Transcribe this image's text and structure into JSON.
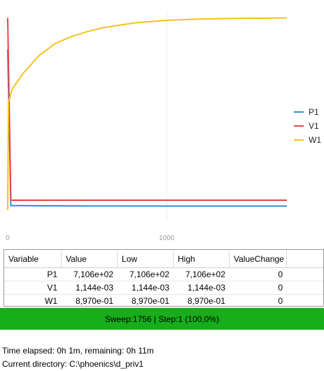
{
  "chart_data": {
    "type": "line",
    "x_ticks": [
      "0",
      "1000"
    ],
    "legend": {
      "placement": "right"
    },
    "series": [
      {
        "name": "P1",
        "color": "#2f8ddb",
        "points": [
          [
            0,
            0.82
          ],
          [
            20,
            0.022
          ],
          [
            100,
            0.022
          ],
          [
            300,
            0.021
          ],
          [
            1000,
            0.02
          ],
          [
            1756,
            0.02
          ]
        ]
      },
      {
        "name": "V1",
        "color": "#e0454a",
        "points": [
          [
            0,
            0.98
          ],
          [
            20,
            0.05
          ],
          [
            100,
            0.05
          ],
          [
            500,
            0.05
          ],
          [
            1000,
            0.05
          ],
          [
            1756,
            0.05
          ]
        ]
      },
      {
        "name": "W1",
        "color": "#f5c218",
        "points": [
          [
            0,
            0.0
          ],
          [
            5,
            0.55
          ],
          [
            30,
            0.62
          ],
          [
            100,
            0.7
          ],
          [
            200,
            0.79
          ],
          [
            300,
            0.85
          ],
          [
            400,
            0.885
          ],
          [
            500,
            0.91
          ],
          [
            600,
            0.93
          ],
          [
            800,
            0.955
          ],
          [
            1000,
            0.968
          ],
          [
            1200,
            0.974
          ],
          [
            1400,
            0.977
          ],
          [
            1756,
            0.98
          ]
        ]
      }
    ]
  },
  "grid": {
    "headers": [
      "Variable",
      "Value",
      "Low",
      "High",
      "ValueChange"
    ],
    "rows": [
      {
        "variable": "P1",
        "value": "7,106e+02",
        "low": "7,106e+02",
        "high": "7,106e+02",
        "change": "0"
      },
      {
        "variable": "V1",
        "value": "1,144e-03",
        "low": "1,144e-03",
        "high": "1,144e-03",
        "change": "0"
      },
      {
        "variable": "W1",
        "value": "8,970e-01",
        "low": "8,970e-01",
        "high": "8,970e-01",
        "change": "0"
      }
    ]
  },
  "status": {
    "text": "Sweep:1756 | Step:1  (100,0%)",
    "color": "#18ad1b"
  },
  "info": {
    "time": "Time elapsed: 0h 1m, remaining: 0h 11m",
    "directory": "Current directory:  C:\\phoenics\\d_priv1"
  }
}
